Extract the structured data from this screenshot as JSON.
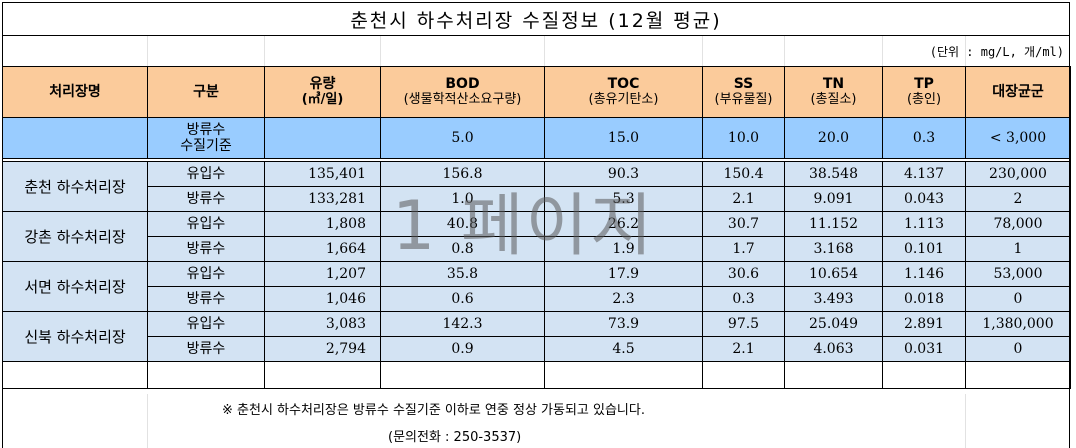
{
  "title": "춘천시 하수처리장 수질정보 (12월 평균)",
  "unit_note": "(단위 : mg/L, 개/ml)",
  "headers": {
    "plant": "처리장명",
    "kind": "구분",
    "flow": "유량",
    "flow_unit": "(㎥/일)",
    "bod": "BOD",
    "bod_sub": "(생물학적산소요구량)",
    "toc": "TOC",
    "toc_sub": "(총유기탄소)",
    "ss": "SS",
    "ss_sub": "(부유물질)",
    "tn": "TN",
    "tn_sub": "(총질소)",
    "tp": "TP",
    "tp_sub": "(총인)",
    "coliform": "대장균군"
  },
  "standard": {
    "label_line1": "방류수",
    "label_line2": "수질기준",
    "bod": "5.0",
    "toc": "15.0",
    "ss": "10.0",
    "tn": "20.0",
    "tp": "0.3",
    "coliform": "< 3,000"
  },
  "plants": [
    {
      "name": "춘천 하수처리장",
      "rows": [
        {
          "kind": "유입수",
          "flow": "135,401",
          "bod": "156.8",
          "toc": "90.3",
          "ss": "150.4",
          "tn": "38.548",
          "tp": "4.137",
          "coliform": "230,000"
        },
        {
          "kind": "방류수",
          "flow": "133,281",
          "bod": "1.0",
          "toc": "5.3",
          "ss": "2.1",
          "tn": "9.091",
          "tp": "0.043",
          "coliform": "2"
        }
      ]
    },
    {
      "name": "강촌 하수처리장",
      "rows": [
        {
          "kind": "유입수",
          "flow": "1,808",
          "bod": "40.8",
          "toc": "26.2",
          "ss": "30.7",
          "tn": "11.152",
          "tp": "1.113",
          "coliform": "78,000"
        },
        {
          "kind": "방류수",
          "flow": "1,664",
          "bod": "0.8",
          "toc": "1.9",
          "ss": "1.7",
          "tn": "3.168",
          "tp": "0.101",
          "coliform": "1"
        }
      ]
    },
    {
      "name": "서면 하수처리장",
      "rows": [
        {
          "kind": "유입수",
          "flow": "1,207",
          "bod": "35.8",
          "toc": "17.9",
          "ss": "30.6",
          "tn": "10.654",
          "tp": "1.146",
          "coliform": "53,000"
        },
        {
          "kind": "방류수",
          "flow": "1,046",
          "bod": "0.6",
          "toc": "2.3",
          "ss": "0.3",
          "tn": "3.493",
          "tp": "0.018",
          "coliform": "0"
        }
      ]
    },
    {
      "name": "신북 하수처리장",
      "rows": [
        {
          "kind": "유입수",
          "flow": "3,083",
          "bod": "142.3",
          "toc": "73.9",
          "ss": "97.5",
          "tn": "25.049",
          "tp": "2.891",
          "coliform": "1,380,000"
        },
        {
          "kind": "방류수",
          "flow": "2,794",
          "bod": "0.9",
          "toc": "4.5",
          "ss": "2.1",
          "tn": "4.063",
          "tp": "0.031",
          "coliform": "0"
        }
      ]
    }
  ],
  "footnote": "※ 춘천시 하수처리장은 방류수 수질기준 이하로 연중 정상 가동되고 있습니다.",
  "contact": "(문의전화 : 250-3537)",
  "watermark": "1 페이지",
  "colors": {
    "header_bg": "#fbcb9b",
    "standard_bg": "#99ccff",
    "data_bg": "#d3e3f3"
  }
}
